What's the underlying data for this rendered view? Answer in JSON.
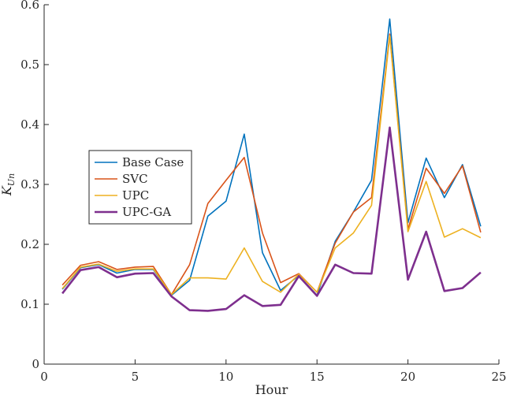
{
  "chart_data": {
    "type": "line",
    "title": "",
    "xlabel": "Hour",
    "ylabel": "K",
    "ylabel_subscript": "Un",
    "xlim": [
      0,
      25
    ],
    "ylim": [
      0,
      0.6
    ],
    "xticks": [
      0,
      5,
      10,
      15,
      20,
      25
    ],
    "xtick_labels": [
      "0",
      "5",
      "10",
      "15",
      "20",
      "25"
    ],
    "yticks": [
      0,
      0.1,
      0.2,
      0.3,
      0.4,
      0.5,
      0.6
    ],
    "ytick_labels": [
      "0",
      "0.1",
      "0.2",
      "0.3",
      "0.4",
      "0.5",
      "0.6"
    ],
    "grid": false,
    "legend_position": "middle-left",
    "x": [
      1,
      2,
      3,
      4,
      5,
      6,
      7,
      8,
      9,
      10,
      11,
      12,
      13,
      14,
      15,
      16,
      17,
      18,
      19,
      20,
      21,
      22,
      23,
      24
    ],
    "series": [
      {
        "name": "Base Case",
        "color": "#0072BD",
        "values": [
          0.125,
          0.161,
          0.166,
          0.152,
          0.158,
          0.158,
          0.115,
          0.14,
          0.247,
          0.272,
          0.384,
          0.186,
          0.123,
          0.148,
          0.115,
          0.205,
          0.254,
          0.307,
          0.576,
          0.236,
          0.344,
          0.278,
          0.333,
          0.23
        ]
      },
      {
        "name": "SVC",
        "color": "#D95319",
        "values": [
          0.132,
          0.165,
          0.171,
          0.158,
          0.162,
          0.163,
          0.116,
          0.166,
          0.268,
          0.307,
          0.345,
          0.219,
          0.136,
          0.151,
          0.12,
          0.202,
          0.254,
          0.278,
          0.551,
          0.225,
          0.327,
          0.285,
          0.331,
          0.22
        ]
      },
      {
        "name": "UPC",
        "color": "#EDB120",
        "values": [
          0.126,
          0.162,
          0.167,
          0.155,
          0.159,
          0.159,
          0.116,
          0.144,
          0.144,
          0.142,
          0.194,
          0.138,
          0.12,
          0.15,
          0.12,
          0.194,
          0.219,
          0.265,
          0.548,
          0.221,
          0.305,
          0.212,
          0.226,
          0.211
        ]
      },
      {
        "name": "UPC-GA",
        "color": "#7E2F8E",
        "values": [
          0.118,
          0.157,
          0.162,
          0.145,
          0.151,
          0.152,
          0.113,
          0.09,
          0.089,
          0.092,
          0.115,
          0.097,
          0.099,
          0.147,
          0.114,
          0.166,
          0.152,
          0.151,
          0.395,
          0.141,
          0.221,
          0.122,
          0.127,
          0.153
        ]
      }
    ]
  }
}
